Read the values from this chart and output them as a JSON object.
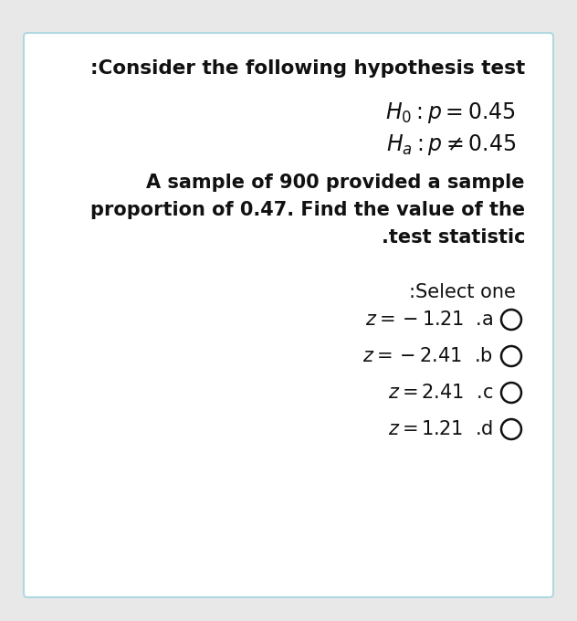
{
  "outer_bg": "#e8e8e8",
  "card_bg": "#ffffff",
  "card_edge": "#b0d8e0",
  "text_color": "#111111",
  "title": ":Consider the following hypothesis test",
  "body_lines": [
    "A sample of 900 provided a sample",
    "proportion of 0.47. Find the value of the",
    ".test statistic"
  ],
  "select_line": ":Select one",
  "option_texts": [
    "z = −1.21 .a",
    "z = −2.41 .b",
    "z = 2.41 .c",
    "z = 1.21 .d"
  ],
  "title_fontsize": 15.5,
  "math_fontsize": 17,
  "body_fontsize": 15,
  "select_fontsize": 15,
  "option_fontsize": 15,
  "fig_width": 6.32,
  "fig_height": 6.8
}
